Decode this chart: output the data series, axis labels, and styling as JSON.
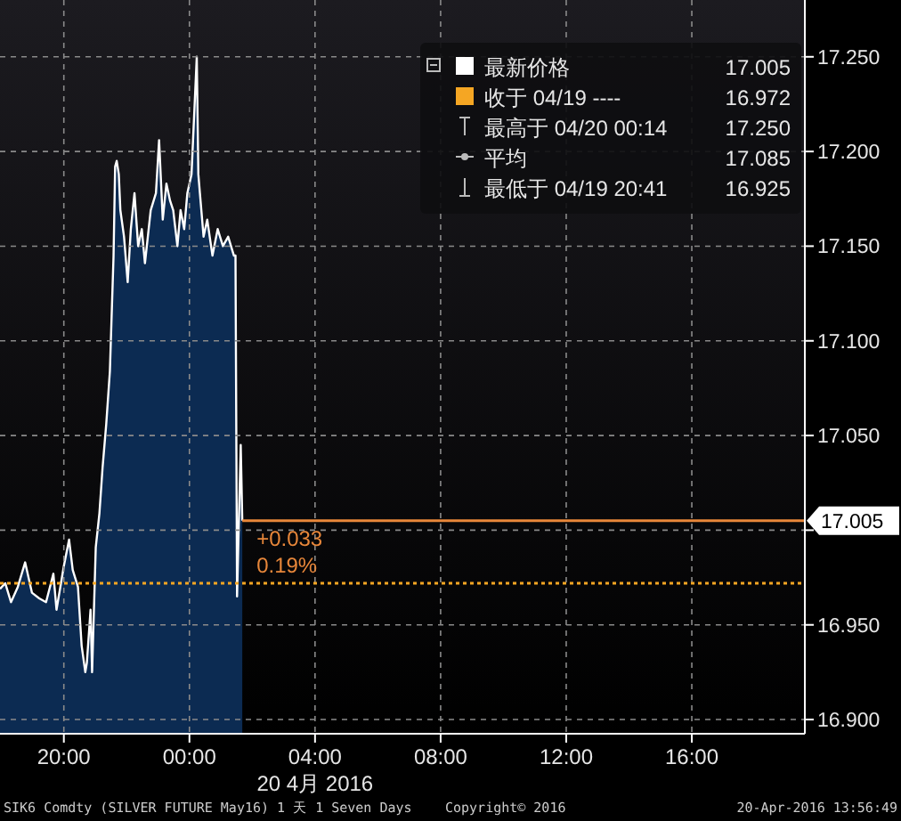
{
  "chart_data": {
    "type": "area",
    "xlabel": "20 4月 2016",
    "x": [
      "2016-04-19T17:58",
      "2016-04-19T18:08",
      "2016-04-19T18:19",
      "2016-04-19T18:32",
      "2016-04-19T18:46",
      "2016-04-19T18:59",
      "2016-04-19T19:13",
      "2016-04-19T19:26",
      "2016-04-19T19:40",
      "2016-04-19T19:46",
      "2016-04-19T20:00",
      "2016-04-19T20:10",
      "2016-04-19T20:17",
      "2016-04-19T20:27",
      "2016-04-19T20:34",
      "2016-04-19T20:41",
      "2016-04-19T20:44",
      "2016-04-19T20:51",
      "2016-04-19T20:54",
      "2016-04-19T21:01",
      "2016-04-19T21:08",
      "2016-04-19T21:14",
      "2016-04-19T21:21",
      "2016-04-19T21:28",
      "2016-04-19T21:35",
      "2016-04-19T21:38",
      "2016-04-19T21:41",
      "2016-04-19T21:45",
      "2016-04-19T21:48",
      "2016-04-19T21:55",
      "2016-04-19T22:02",
      "2016-04-19T22:08",
      "2016-04-19T22:15",
      "2016-04-19T22:22",
      "2016-04-19T22:29",
      "2016-04-19T22:35",
      "2016-04-19T22:46",
      "2016-04-19T22:56",
      "2016-04-19T23:02",
      "2016-04-19T23:09",
      "2016-04-19T23:16",
      "2016-04-19T23:23",
      "2016-04-19T23:29",
      "2016-04-19T23:37",
      "2016-04-19T23:43",
      "2016-04-19T23:50",
      "2016-04-19T23:56",
      "2016-04-20T00:04",
      "2016-04-20T00:14",
      "2016-04-20T00:17",
      "2016-04-20T00:20",
      "2016-04-20T00:27",
      "2016-04-20T00:34",
      "2016-04-20T00:44",
      "2016-04-20T00:54",
      "2016-04-20T01:04",
      "2016-04-20T01:14",
      "2016-04-20T01:25",
      "2016-04-20T01:28",
      "2016-04-20T01:31",
      "2016-04-20T01:38",
      "2016-04-20T01:41"
    ],
    "series": [
      {
        "name": "最新价格",
        "color": "#ffffff",
        "values": [
          16.969,
          16.972,
          16.962,
          16.97,
          16.983,
          16.967,
          16.964,
          16.962,
          16.977,
          16.958,
          16.981,
          16.995,
          16.979,
          16.97,
          16.939,
          16.925,
          16.93,
          16.958,
          16.925,
          16.991,
          17.009,
          17.033,
          17.056,
          17.084,
          17.145,
          17.192,
          17.195,
          17.188,
          17.169,
          17.155,
          17.131,
          17.159,
          17.178,
          17.15,
          17.159,
          17.141,
          17.169,
          17.178,
          17.206,
          17.164,
          17.183,
          17.174,
          17.169,
          17.15,
          17.169,
          17.159,
          17.178,
          17.188,
          17.25,
          17.188,
          17.178,
          17.155,
          17.164,
          17.145,
          17.159,
          17.15,
          17.155,
          17.145,
          17.145,
          16.965,
          17.045,
          17.005
        ]
      }
    ],
    "xlim": [
      "2016-04-19T17:58",
      "2016-04-20T19:36"
    ],
    "xticks": [
      {
        "value": "2016-04-19T20:00",
        "label": "20:00"
      },
      {
        "value": "2016-04-20T00:00",
        "label": "00:00"
      },
      {
        "value": "2016-04-20T04:00",
        "label": "04:00"
      },
      {
        "value": "2016-04-20T08:00",
        "label": "08:00"
      },
      {
        "value": "2016-04-20T12:00",
        "label": "12:00"
      },
      {
        "value": "2016-04-20T16:00",
        "label": "16:00"
      }
    ],
    "ylim": [
      16.8925,
      17.28
    ],
    "yticks": [
      {
        "value": 16.9,
        "label": "16.900"
      },
      {
        "value": 16.95,
        "label": "16.950"
      },
      {
        "value": 17.0,
        "label": null
      },
      {
        "value": 17.05,
        "label": "17.050"
      },
      {
        "value": 17.1,
        "label": "17.100"
      },
      {
        "value": 17.15,
        "label": "17.150"
      },
      {
        "value": 17.2,
        "label": "17.200"
      },
      {
        "value": 17.25,
        "label": "17.250"
      }
    ],
    "grid": true,
    "legend": "top right",
    "ref_lines": [
      {
        "axis": "y",
        "value": 17.005,
        "label": "17.005",
        "color": "#e8873a",
        "line_style": "solid"
      },
      {
        "axis": "y",
        "value": 16.972,
        "label": "收于 04/19 ----",
        "color": "#f5a623",
        "line_style": "dotted"
      }
    ],
    "annotations": [
      "17.005",
      "16.972",
      "最高于 04/20 00:14",
      "17.250",
      "平均",
      "17.085",
      "最低于 04/19 20:41",
      "16.925",
      "+0.033",
      "0.19%",
      "SIK6 Comdty (SILVER FUTURE May16) 1 天 1 Seven Days",
      "Copyright© 2016",
      "20-Apr-2016 13:56:49"
    ]
  }
}
